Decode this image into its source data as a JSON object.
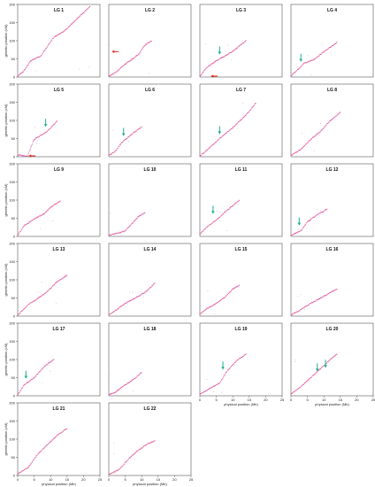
{
  "chart_data": {
    "type": "scatter",
    "layout": "small-multiples grid, 4 columns x 6 rows (22 panels)",
    "xlabel": "physical position (Mb)",
    "ylabel": "genetic position (cM)",
    "xlim": [
      0,
      25
    ],
    "ylim": [
      0,
      200
    ],
    "x_ticks": [
      0,
      5,
      10,
      15,
      20,
      25
    ],
    "y_ticks": [
      0,
      50,
      100,
      150,
      200
    ],
    "point_color": "#e0559c",
    "arrow_colors": {
      "green": "#1fae8e",
      "red": "#e2231a"
    },
    "grid": false,
    "panels": [
      {
        "title": "LG 1",
        "curve": [
          [
            0,
            2
          ],
          [
            2,
            18
          ],
          [
            4,
            45
          ],
          [
            7,
            58
          ],
          [
            11,
            110
          ],
          [
            14,
            125
          ],
          [
            18,
            160
          ],
          [
            22,
            195
          ]
        ],
        "green_arrows": [],
        "red_arrows": []
      },
      {
        "title": "LG 2",
        "curve": [
          [
            0,
            3
          ],
          [
            2,
            12
          ],
          [
            4,
            28
          ],
          [
            6,
            42
          ],
          [
            9,
            62
          ],
          [
            11,
            88
          ],
          [
            13,
            100
          ]
        ],
        "green_arrows": [],
        "red_arrows": [
          [
            0.6,
            70
          ]
        ]
      },
      {
        "title": "LG 3",
        "curve": [
          [
            0,
            2
          ],
          [
            2,
            25
          ],
          [
            5,
            45
          ],
          [
            8,
            60
          ],
          [
            11,
            78
          ],
          [
            14,
            100
          ]
        ],
        "green_arrows": [
          [
            6,
            60
          ]
        ],
        "red_arrows": [
          [
            3,
            -2
          ]
        ]
      },
      {
        "title": "LG 4",
        "curve": [
          [
            0,
            3
          ],
          [
            2,
            20
          ],
          [
            4,
            38
          ],
          [
            7,
            48
          ],
          [
            10,
            70
          ],
          [
            14,
            95
          ]
        ],
        "green_arrows": [
          [
            3,
            40
          ]
        ],
        "red_arrows": []
      },
      {
        "title": "LG 5",
        "curve": [
          [
            0,
            5
          ],
          [
            3,
            2
          ],
          [
            5,
            48
          ],
          [
            9,
            70
          ],
          [
            12,
            98
          ]
        ],
        "green_arrows": [
          [
            8.5,
            80
          ]
        ],
        "red_arrows": [
          [
            3,
            2
          ]
        ]
      },
      {
        "title": "LG 6",
        "curve": [
          [
            0,
            3
          ],
          [
            2,
            15
          ],
          [
            4,
            40
          ],
          [
            7,
            62
          ],
          [
            10,
            82
          ]
        ],
        "green_arrows": [
          [
            4.5,
            55
          ]
        ],
        "red_arrows": []
      },
      {
        "title": "LG 7",
        "curve": [
          [
            0,
            2
          ],
          [
            3,
            25
          ],
          [
            6,
            50
          ],
          [
            10,
            80
          ],
          [
            14,
            115
          ],
          [
            17,
            148
          ]
        ],
        "green_arrows": [
          [
            6,
            60
          ]
        ],
        "red_arrows": []
      },
      {
        "title": "LG 8",
        "curve": [
          [
            0,
            3
          ],
          [
            3,
            20
          ],
          [
            6,
            48
          ],
          [
            9,
            70
          ],
          [
            12,
            100
          ],
          [
            15,
            122
          ]
        ],
        "green_arrows": [],
        "red_arrows": []
      },
      {
        "title": "LG 9",
        "curve": [
          [
            0,
            3
          ],
          [
            2,
            30
          ],
          [
            5,
            48
          ],
          [
            8,
            62
          ],
          [
            10,
            80
          ],
          [
            13,
            98
          ]
        ],
        "green_arrows": [],
        "red_arrows": []
      },
      {
        "title": "LG 10",
        "curve": [
          [
            0,
            3
          ],
          [
            3,
            10
          ],
          [
            5,
            15
          ],
          [
            7,
            35
          ],
          [
            9,
            55
          ],
          [
            11,
            65
          ]
        ],
        "green_arrows": [],
        "red_arrows": []
      },
      {
        "title": "LG 11",
        "curve": [
          [
            0,
            5
          ],
          [
            2,
            25
          ],
          [
            5,
            45
          ],
          [
            8,
            70
          ],
          [
            12,
            100
          ]
        ],
        "green_arrows": [
          [
            4,
            60
          ]
        ],
        "red_arrows": []
      },
      {
        "title": "LG 12",
        "curve": [
          [
            0,
            3
          ],
          [
            3,
            15
          ],
          [
            5,
            40
          ],
          [
            8,
            60
          ],
          [
            11,
            75
          ]
        ],
        "green_arrows": [
          [
            2.5,
            28
          ]
        ],
        "red_arrows": []
      },
      {
        "title": "LG 13",
        "curve": [
          [
            0,
            2
          ],
          [
            3,
            30
          ],
          [
            6,
            48
          ],
          [
            9,
            68
          ],
          [
            12,
            95
          ],
          [
            15,
            112
          ]
        ],
        "green_arrows": [],
        "red_arrows": []
      },
      {
        "title": "LG 14",
        "curve": [
          [
            0,
            3
          ],
          [
            2,
            15
          ],
          [
            5,
            35
          ],
          [
            8,
            50
          ],
          [
            11,
            65
          ],
          [
            14,
            90
          ]
        ],
        "green_arrows": [],
        "red_arrows": []
      },
      {
        "title": "LG 15",
        "curve": [
          [
            0,
            5
          ],
          [
            2,
            20
          ],
          [
            5,
            35
          ],
          [
            8,
            55
          ],
          [
            10,
            75
          ],
          [
            12,
            85
          ]
        ],
        "green_arrows": [],
        "red_arrows": []
      },
      {
        "title": "LG 16",
        "curve": [
          [
            0,
            3
          ],
          [
            3,
            18
          ],
          [
            6,
            35
          ],
          [
            10,
            55
          ],
          [
            14,
            75
          ]
        ],
        "green_arrows": [],
        "red_arrows": []
      },
      {
        "title": "LG 17",
        "curve": [
          [
            0,
            3
          ],
          [
            2,
            30
          ],
          [
            5,
            50
          ],
          [
            8,
            80
          ],
          [
            11,
            100
          ]
        ],
        "green_arrows": [
          [
            2.5,
            45
          ]
        ],
        "red_arrows": []
      },
      {
        "title": "LG 18",
        "curve": [
          [
            0,
            3
          ],
          [
            2,
            10
          ],
          [
            5,
            30
          ],
          [
            8,
            48
          ],
          [
            10,
            65
          ]
        ],
        "green_arrows": [],
        "red_arrows": []
      },
      {
        "title": "LG 19",
        "curve": [
          [
            0,
            5
          ],
          [
            3,
            20
          ],
          [
            6,
            35
          ],
          [
            8,
            65
          ],
          [
            11,
            95
          ],
          [
            14,
            115
          ]
        ],
        "green_arrows": [
          [
            7,
            70
          ]
        ],
        "red_arrows": []
      },
      {
        "title": "LG 20",
        "curve": [
          [
            0,
            5
          ],
          [
            3,
            25
          ],
          [
            6,
            50
          ],
          [
            9,
            75
          ],
          [
            12,
            100
          ],
          [
            14,
            115
          ]
        ],
        "green_arrows": [
          [
            8,
            65
          ],
          [
            10.5,
            75
          ]
        ],
        "red_arrows": []
      },
      {
        "title": "LG 21",
        "curve": [
          [
            0,
            5
          ],
          [
            3,
            20
          ],
          [
            6,
            58
          ],
          [
            9,
            85
          ],
          [
            12,
            110
          ],
          [
            15,
            130
          ]
        ],
        "green_arrows": [],
        "red_arrows": []
      },
      {
        "title": "LG 22",
        "curve": [
          [
            0,
            3
          ],
          [
            3,
            15
          ],
          [
            6,
            45
          ],
          [
            9,
            70
          ],
          [
            12,
            88
          ],
          [
            14,
            95
          ]
        ],
        "green_arrows": [],
        "red_arrows": []
      }
    ]
  }
}
